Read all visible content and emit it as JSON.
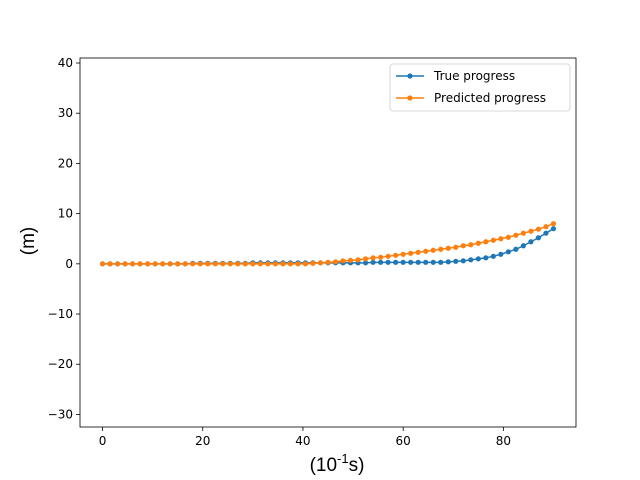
{
  "chart_data": {
    "type": "line",
    "title": "",
    "xlabel_base": "(10",
    "xlabel_exp": "-1",
    "xlabel_unit": "s)",
    "ylabel": "(m)",
    "xlim": [
      -4.5,
      94.5
    ],
    "ylim": [
      -32.5,
      41
    ],
    "xticks": [
      0,
      20,
      40,
      60,
      80
    ],
    "yticks": [
      -30,
      -20,
      -10,
      0,
      10,
      20,
      30,
      40
    ],
    "grid": false,
    "legend_position": "top-right",
    "series": [
      {
        "name": "True progress",
        "color": "#1f77b4",
        "x": [
          0,
          1.5,
          3,
          4.5,
          6,
          7.5,
          9,
          10.5,
          12,
          13.5,
          15,
          16.5,
          18,
          19.5,
          21,
          22.5,
          24,
          25.5,
          27,
          28.5,
          30,
          31.5,
          33,
          34.5,
          36,
          37.5,
          39,
          40.5,
          42,
          43.5,
          45,
          46.5,
          48,
          49.5,
          51,
          52.5,
          54,
          55.5,
          57,
          58.5,
          60,
          61.5,
          63,
          64.5,
          66,
          67.5,
          69,
          70.5,
          72,
          73.5,
          75,
          76.5,
          78,
          79.5,
          81,
          82.5,
          84,
          85.5,
          87,
          88.5,
          90
        ],
        "y": [
          0,
          0,
          0,
          0,
          0,
          0,
          0,
          0,
          0,
          0,
          0,
          0,
          0.1,
          0.1,
          0.1,
          0.1,
          0.1,
          0.1,
          0.1,
          0.1,
          0.2,
          0.2,
          0.2,
          0.2,
          0.2,
          0.2,
          0.2,
          0.2,
          0.2,
          0.2,
          0.2,
          0.2,
          0.2,
          0.2,
          0.2,
          0.2,
          0.3,
          0.3,
          0.3,
          0.3,
          0.3,
          0.3,
          0.3,
          0.3,
          0.3,
          0.3,
          0.4,
          0.5,
          0.6,
          0.8,
          1.0,
          1.2,
          1.5,
          1.9,
          2.4,
          2.9,
          3.6,
          4.4,
          5.2,
          6.1,
          7.0
        ]
      },
      {
        "name": "Predicted progress",
        "color": "#ff7f0e",
        "x": [
          0,
          1.5,
          3,
          4.5,
          6,
          7.5,
          9,
          10.5,
          12,
          13.5,
          15,
          16.5,
          18,
          19.5,
          21,
          22.5,
          24,
          25.5,
          27,
          28.5,
          30,
          31.5,
          33,
          34.5,
          36,
          37.5,
          39,
          40.5,
          42,
          43.5,
          45,
          46.5,
          48,
          49.5,
          51,
          52.5,
          54,
          55.5,
          57,
          58.5,
          60,
          61.5,
          63,
          64.5,
          66,
          67.5,
          69,
          70.5,
          72,
          73.5,
          75,
          76.5,
          78,
          79.5,
          81,
          82.5,
          84,
          85.5,
          87,
          88.5,
          90
        ],
        "y": [
          0,
          0,
          0,
          0,
          0,
          0,
          0,
          0,
          0,
          0,
          0,
          0,
          0,
          0,
          0,
          0,
          0,
          0,
          0,
          0,
          0,
          0,
          0,
          0,
          0,
          0,
          0,
          0,
          0.1,
          0.2,
          0.3,
          0.4,
          0.6,
          0.7,
          0.8,
          1.0,
          1.2,
          1.3,
          1.5,
          1.7,
          1.9,
          2.1,
          2.3,
          2.5,
          2.7,
          2.9,
          3.1,
          3.3,
          3.6,
          3.8,
          4.1,
          4.4,
          4.7,
          5.0,
          5.3,
          5.7,
          6.1,
          6.5,
          6.9,
          7.4,
          8.0
        ]
      }
    ]
  }
}
